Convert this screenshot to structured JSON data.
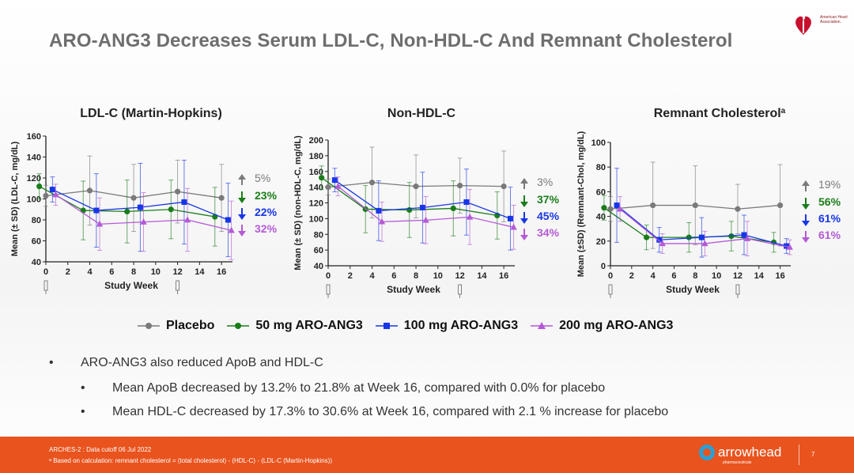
{
  "title": "ARO-ANG3 Decreases Serum LDL-C, Non-HDL-C And Remnant Cholesterol",
  "logo": {
    "text": "American Heart Association."
  },
  "colors": {
    "placebo": "#7a7a7a",
    "mg50": "#1a7d1a",
    "mg100": "#1736e6",
    "mg200": "#b45ad6",
    "footer": "#e9531e"
  },
  "chart_data": [
    {
      "type": "line",
      "title": "LDL-C (Martin-Hopkins)",
      "title_sup": "",
      "ylabel": "Mean (± SD) (LDL-C, mg/dL)",
      "xlabel": "Study Week",
      "ylim": [
        40,
        160
      ],
      "yticks": [
        40,
        60,
        80,
        100,
        120,
        140,
        160
      ],
      "xticks": [
        0,
        2,
        4,
        6,
        8,
        10,
        12,
        14,
        16
      ],
      "x": [
        0,
        4,
        8,
        12,
        16
      ],
      "series": [
        {
          "name": "Placebo",
          "values": [
            103,
            108,
            101,
            107,
            101
          ],
          "sd": [
            10,
            33,
            32,
            30,
            32
          ]
        },
        {
          "name": "50 mg ARO-ANG3",
          "values": [
            112,
            89,
            88,
            90,
            83
          ],
          "sd": [
            12,
            28,
            30,
            28,
            28
          ]
        },
        {
          "name": "100 mg ARO-ANG3",
          "values": [
            109,
            89,
            92,
            97,
            80
          ],
          "sd": [
            12,
            35,
            42,
            40,
            35
          ]
        },
        {
          "name": "200 mg ARO-ANG3",
          "values": [
            104,
            76,
            78,
            80,
            70
          ],
          "sd": [
            10,
            25,
            28,
            30,
            28
          ]
        }
      ],
      "pct": [
        {
          "dir": "up",
          "text": "5%"
        },
        {
          "dir": "down",
          "text": "23%"
        },
        {
          "dir": "down",
          "text": "22%"
        },
        {
          "dir": "down",
          "text": "32%"
        }
      ]
    },
    {
      "type": "line",
      "title": "Non-HDL-C",
      "title_sup": "",
      "ylabel": "Mean (± SD) (non-HDL-C, mg/dL)",
      "xlabel": "Study Week",
      "ylim": [
        40,
        200
      ],
      "yticks": [
        40,
        60,
        80,
        100,
        120,
        140,
        160,
        180,
        200
      ],
      "xticks": [
        0,
        2,
        4,
        6,
        8,
        10,
        12,
        14,
        16
      ],
      "x": [
        0,
        4,
        8,
        12,
        16
      ],
      "series": [
        {
          "name": "Placebo",
          "values": [
            140,
            146,
            141,
            142,
            141
          ],
          "sd": [
            10,
            45,
            40,
            35,
            45
          ]
        },
        {
          "name": "50 mg ARO-ANG3",
          "values": [
            152,
            112,
            111,
            113,
            104
          ],
          "sd": [
            15,
            30,
            35,
            35,
            30
          ]
        },
        {
          "name": "100 mg ARO-ANG3",
          "values": [
            149,
            110,
            114,
            121,
            100
          ],
          "sd": [
            15,
            38,
            45,
            42,
            40
          ]
        },
        {
          "name": "200 mg ARO-ANG3",
          "values": [
            141,
            96,
            98,
            102,
            89
          ],
          "sd": [
            12,
            25,
            30,
            35,
            28
          ]
        }
      ],
      "pct": [
        {
          "dir": "up",
          "text": "3%"
        },
        {
          "dir": "down",
          "text": "37%"
        },
        {
          "dir": "down",
          "text": "45%"
        },
        {
          "dir": "down",
          "text": "34%"
        }
      ]
    },
    {
      "type": "line",
      "title": "Remnant Cholesterol",
      "title_sup": "a",
      "ylabel": "Mean (±SD) (Remnant-Chol, mg/dL)",
      "xlabel": "Study Week",
      "ylim": [
        0,
        100
      ],
      "yticks": [
        0,
        20,
        40,
        60,
        80,
        100
      ],
      "xticks": [
        0,
        2,
        4,
        6,
        8,
        10,
        12,
        14,
        16
      ],
      "x": [
        0,
        4,
        8,
        12,
        16
      ],
      "series": [
        {
          "name": "Placebo",
          "values": [
            46,
            49,
            49,
            46,
            49
          ],
          "sd": [
            10,
            35,
            32,
            20,
            33
          ]
        },
        {
          "name": "50 mg ARO-ANG3",
          "values": [
            47,
            23,
            23,
            24,
            19
          ],
          "sd": [
            10,
            10,
            12,
            12,
            8
          ]
        },
        {
          "name": "100 mg ARO-ANG3",
          "values": [
            49,
            21,
            23,
            25,
            16
          ],
          "sd": [
            30,
            10,
            16,
            16,
            6
          ]
        },
        {
          "name": "200 mg ARO-ANG3",
          "values": [
            46,
            18,
            18,
            22,
            15
          ],
          "sd": [
            10,
            8,
            10,
            14,
            6
          ]
        }
      ],
      "pct": [
        {
          "dir": "up",
          "text": "19%"
        },
        {
          "dir": "down",
          "text": "56%"
        },
        {
          "dir": "down",
          "text": "61%"
        },
        {
          "dir": "down",
          "text": "61%"
        }
      ]
    }
  ],
  "legend": [
    {
      "label": "Placebo",
      "marker": "circle",
      "color": "#7a7a7a"
    },
    {
      "label": "50 mg ARO-ANG3",
      "marker": "circle",
      "color": "#1a7d1a"
    },
    {
      "label": "100 mg ARO-ANG3",
      "marker": "square",
      "color": "#1736e6"
    },
    {
      "label": "200 mg ARO-ANG3",
      "marker": "triangle",
      "color": "#b45ad6"
    }
  ],
  "bullets": {
    "main": "ARO-ANG3 also reduced ApoB and HDL-C",
    "sub1": "Mean ApoB decreased by 13.2% to 21.8% at Week 16, compared with 0.0% for placebo",
    "sub2": "Mean HDL-C decreased by 17.3% to 30.6% at Week 16, compared with 2.1 % increase for placebo",
    "bullet_char": "•"
  },
  "footer": {
    "line1": "ARCHES-2 : Data cutoff 06 Jul 2022",
    "line2": "ᵃ Based on calculation: remnant cholesterol = (total cholesterol) - (HDL-C) - (LDL-C (Martin-Hopkins))",
    "brand": "arrowhead",
    "brand_sub": "pharmaceuticals",
    "page": "7"
  }
}
